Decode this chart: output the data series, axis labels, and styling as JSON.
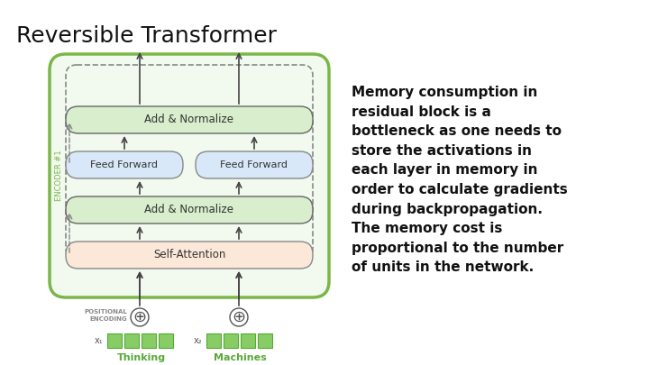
{
  "title": "Reversible Transformer",
  "title_fontsize": 18,
  "title_fontweight": "normal",
  "background_color": "#ffffff",
  "text_block": "Memory consumption in\nresidual block is a\nbottleneck as one needs to\nstore the activations in\neach layer in memory in\norder to calculate gradients\nduring backpropagation.\nThe memory cost is\nproportional to the number\nof units in the network.",
  "text_fontsize": 11,
  "text_fontweight": "bold",
  "outer_box_color": "#7ab648",
  "outer_box_bg": "#f2faf0",
  "add_norm_color": "#d8eecc",
  "add_norm_border": "#666666",
  "feed_forward_color": "#d8e8f8",
  "feed_forward_border": "#888888",
  "self_attention_color": "#fce8d8",
  "self_attention_border": "#888888",
  "encoder_label": "ENCODER #1",
  "thinking_label": "Thinking",
  "machines_label": "Machines",
  "x1_label": "x₁",
  "x2_label": "x₂",
  "pos_enc_label": "POSITIONAL\nENCODING",
  "green_label_color": "#5aaa3a",
  "token_face_color": "#88cc66",
  "token_edge_color": "#55aa33",
  "arrow_color": "#444444",
  "dashed_color": "#888888"
}
